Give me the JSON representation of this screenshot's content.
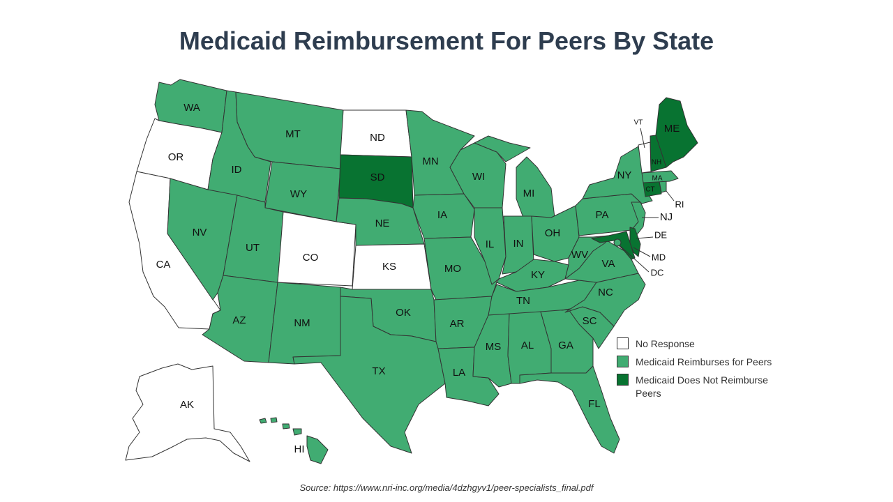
{
  "title": "Medicaid Reimbursement For Peers By State",
  "source": "Source: https://www.nri-inc.org/media/4dzhgyv1/peer-specialists_final.pdf",
  "colors": {
    "no_response": "#ffffff",
    "reimburses": "#41ac72",
    "does_not_reimburse": "#087331",
    "border": "#333333"
  },
  "legend": [
    {
      "key": "no_response",
      "label": "No Response"
    },
    {
      "key": "reimburses",
      "label": "Medicaid Reimburses for Peers"
    },
    {
      "key": "does_not_reimburse",
      "label": "Medicaid Does Not Reimburse Peers"
    }
  ],
  "states": {
    "WA": {
      "label": "WA",
      "status": "reimburses"
    },
    "OR": {
      "label": "OR",
      "status": "no_response"
    },
    "CA": {
      "label": "CA",
      "status": "no_response"
    },
    "ID": {
      "label": "ID",
      "status": "reimburses"
    },
    "NV": {
      "label": "NV",
      "status": "reimburses"
    },
    "MT": {
      "label": "MT",
      "status": "reimburses"
    },
    "WY": {
      "label": "WY",
      "status": "reimburses"
    },
    "UT": {
      "label": "UT",
      "status": "reimburses"
    },
    "AZ": {
      "label": "AZ",
      "status": "reimburses"
    },
    "CO": {
      "label": "CO",
      "status": "no_response"
    },
    "NM": {
      "label": "NM",
      "status": "reimburses"
    },
    "ND": {
      "label": "ND",
      "status": "no_response"
    },
    "SD": {
      "label": "SD",
      "status": "does_not_reimburse"
    },
    "NE": {
      "label": "NE",
      "status": "reimburses"
    },
    "KS": {
      "label": "KS",
      "status": "no_response"
    },
    "OK": {
      "label": "OK",
      "status": "reimburses"
    },
    "TX": {
      "label": "TX",
      "status": "reimburses"
    },
    "MN": {
      "label": "MN",
      "status": "reimburses"
    },
    "IA": {
      "label": "IA",
      "status": "reimburses"
    },
    "MO": {
      "label": "MO",
      "status": "reimburses"
    },
    "AR": {
      "label": "AR",
      "status": "reimburses"
    },
    "LA": {
      "label": "LA",
      "status": "reimburses"
    },
    "WI": {
      "label": "WI",
      "status": "reimburses"
    },
    "IL": {
      "label": "IL",
      "status": "reimburses"
    },
    "MI": {
      "label": "MI",
      "status": "reimburses"
    },
    "IN": {
      "label": "IN",
      "status": "reimburses"
    },
    "OH": {
      "label": "OH",
      "status": "reimburses"
    },
    "KY": {
      "label": "KY",
      "status": "reimburses"
    },
    "TN": {
      "label": "TN",
      "status": "reimburses"
    },
    "MS": {
      "label": "MS",
      "status": "reimburses"
    },
    "AL": {
      "label": "AL",
      "status": "reimburses"
    },
    "GA": {
      "label": "GA",
      "status": "reimburses"
    },
    "FL": {
      "label": "FL",
      "status": "reimburses"
    },
    "SC": {
      "label": "SC",
      "status": "reimburses"
    },
    "NC": {
      "label": "NC",
      "status": "reimburses"
    },
    "VA": {
      "label": "VA",
      "status": "reimburses"
    },
    "WV": {
      "label": "WV",
      "status": "reimburses"
    },
    "PA": {
      "label": "PA",
      "status": "reimburses"
    },
    "NY": {
      "label": "NY",
      "status": "reimburses"
    },
    "NJ": {
      "label": "NJ",
      "status": "reimburses"
    },
    "DE": {
      "label": "DE",
      "status": "does_not_reimburse"
    },
    "MD": {
      "label": "MD",
      "status": "does_not_reimburse"
    },
    "DC": {
      "label": "DC",
      "status": "reimburses"
    },
    "CT": {
      "label": "CT",
      "status": "does_not_reimburse"
    },
    "RI": {
      "label": "RI",
      "status": "reimburses"
    },
    "MA": {
      "label": "MA",
      "status": "reimburses"
    },
    "VT": {
      "label": "VT",
      "status": "no_response"
    },
    "NH": {
      "label": "NH",
      "status": "does_not_reimburse"
    },
    "ME": {
      "label": "ME",
      "status": "does_not_reimburse"
    },
    "AK": {
      "label": "AK",
      "status": "no_response"
    },
    "HI": {
      "label": "HI",
      "status": "reimburses"
    }
  }
}
